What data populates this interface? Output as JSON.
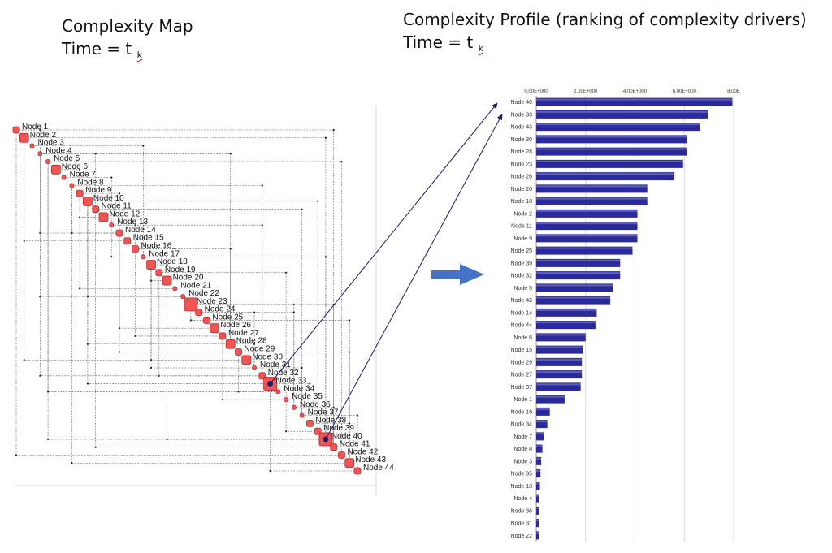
{
  "left_title": {
    "line1": "Complexity Map",
    "line2_prefix": "Time = t",
    "line2_sub": "k"
  },
  "right_title": {
    "line1": "Complexity Profile (ranking of complexity drivers)",
    "line2_prefix": "Time = t",
    "line2_sub": "k"
  },
  "arrow_color": "#4472c4",
  "connector_color": "#1a1a6e",
  "chart_data": [
    {
      "type": "scatter",
      "title": "",
      "xlabel": "",
      "ylabel": "",
      "grid": true,
      "legend": "none",
      "marker_color": "#ee5555",
      "nodes": [
        {
          "label": "Node 1",
          "size": 2
        },
        {
          "label": "Node 2",
          "size": 3
        },
        {
          "label": "Node 3",
          "size": 1
        },
        {
          "label": "Node 4",
          "size": 1
        },
        {
          "label": "Node 5",
          "size": 1
        },
        {
          "label": "Node 6",
          "size": 3
        },
        {
          "label": "Node 7",
          "size": 1
        },
        {
          "label": "Node 8",
          "size": 1
        },
        {
          "label": "Node 9",
          "size": 2
        },
        {
          "label": "Node 10",
          "size": 3
        },
        {
          "label": "Node 11",
          "size": 2
        },
        {
          "label": "Node 12",
          "size": 3
        },
        {
          "label": "Node 13",
          "size": 1
        },
        {
          "label": "Node 14",
          "size": 2
        },
        {
          "label": "Node 15",
          "size": 2
        },
        {
          "label": "Node 16",
          "size": 2
        },
        {
          "label": "Node 17",
          "size": 1
        },
        {
          "label": "Node 18",
          "size": 3
        },
        {
          "label": "Node 19",
          "size": 2
        },
        {
          "label": "Node 20",
          "size": 3
        },
        {
          "label": "Node 21",
          "size": 1
        },
        {
          "label": "Node 22",
          "size": 1
        },
        {
          "label": "Node 23",
          "size": 4
        },
        {
          "label": "Node 24",
          "size": 2
        },
        {
          "label": "Node 25",
          "size": 2
        },
        {
          "label": "Node 26",
          "size": 3
        },
        {
          "label": "Node 27",
          "size": 2
        },
        {
          "label": "Node 28",
          "size": 3
        },
        {
          "label": "Node 29",
          "size": 2
        },
        {
          "label": "Node 30",
          "size": 3
        },
        {
          "label": "Node 31",
          "size": 1
        },
        {
          "label": "Node 32",
          "size": 2
        },
        {
          "label": "Node 33",
          "size": 4
        },
        {
          "label": "Node 34",
          "size": 1
        },
        {
          "label": "Node 35",
          "size": 1
        },
        {
          "label": "Node 36",
          "size": 1
        },
        {
          "label": "Node 37",
          "size": 1
        },
        {
          "label": "Node 38",
          "size": 2
        },
        {
          "label": "Node 39",
          "size": 2
        },
        {
          "label": "Node 40",
          "size": 4
        },
        {
          "label": "Node 41",
          "size": 2
        },
        {
          "label": "Node 42",
          "size": 2
        },
        {
          "label": "Node 43",
          "size": 3
        },
        {
          "label": "Node 44",
          "size": 2
        }
      ]
    },
    {
      "type": "bar",
      "orientation": "horizontal",
      "title": "",
      "xlabel": "",
      "ylabel": "",
      "xlim": [
        0,
        8
      ],
      "xticks": [
        {
          "value": 0,
          "label": "0.00E+000"
        },
        {
          "value": 2,
          "label": "2.00E+000"
        },
        {
          "value": 4,
          "label": "4.00E+000"
        },
        {
          "value": 6,
          "label": "6.00E+000"
        },
        {
          "value": 8,
          "label": "8.00E"
        }
      ],
      "grid": true,
      "legend": "none",
      "bar_color": "#2a2a9c",
      "categories": [
        "Node 40",
        "Node 33",
        "Node 43",
        "Node 30",
        "Node 28",
        "Node 23",
        "Node 26",
        "Node 20",
        "Node 18",
        "Node 2",
        "Node 11",
        "Node 9",
        "Node 25",
        "Node 39",
        "Node 32",
        "Node 5",
        "Node 42",
        "Node 14",
        "Node 44",
        "Node 6",
        "Node 15",
        "Node 29",
        "Node 27",
        "Node 37",
        "Node 1",
        "Node 16",
        "Node 34",
        "Node 7",
        "Node 8",
        "Node 3",
        "Node 35",
        "Node 13",
        "Node 4",
        "Node 36",
        "Node 31",
        "Node 22"
      ],
      "values": [
        7.95,
        6.95,
        6.65,
        6.1,
        6.1,
        5.95,
        5.6,
        4.5,
        4.5,
        4.1,
        4.1,
        4.1,
        3.9,
        3.4,
        3.4,
        3.1,
        3.0,
        2.45,
        2.4,
        2.0,
        1.9,
        1.85,
        1.85,
        1.8,
        1.15,
        0.55,
        0.45,
        0.3,
        0.25,
        0.2,
        0.17,
        0.15,
        0.13,
        0.12,
        0.11,
        0.1
      ]
    }
  ]
}
